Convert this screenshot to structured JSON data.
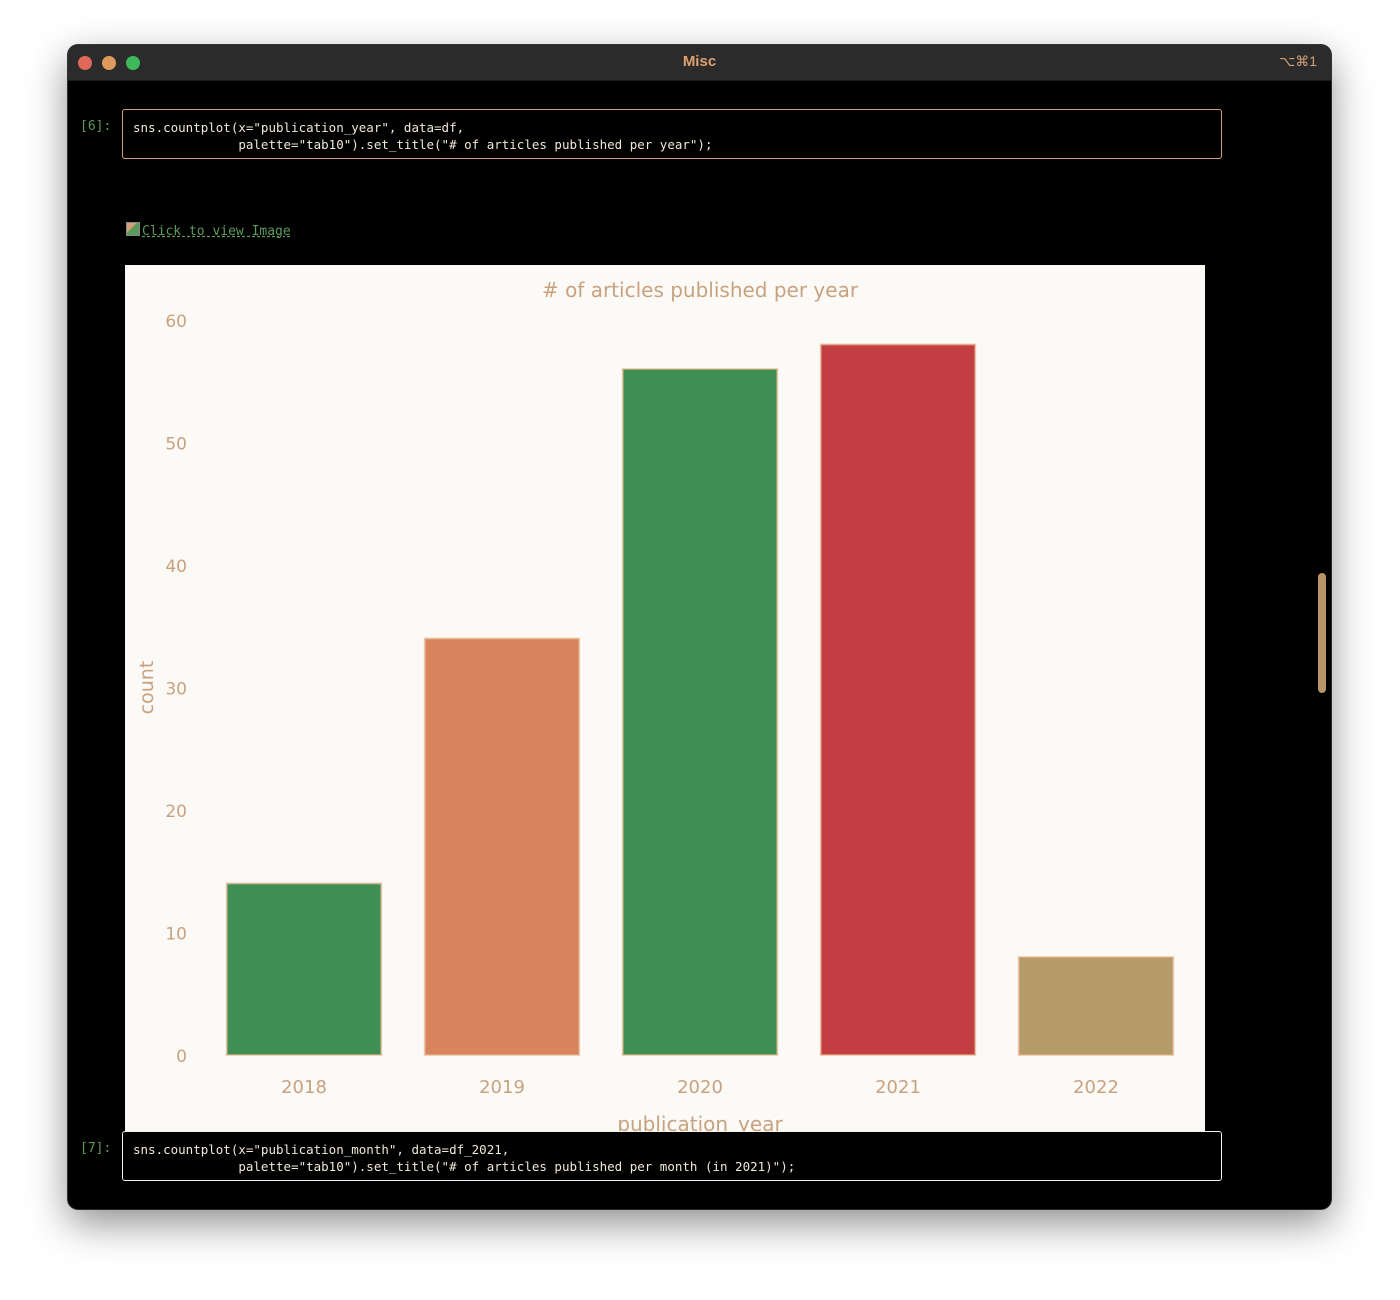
{
  "window": {
    "title": "Misc",
    "shortcut": "⌥⌘1"
  },
  "cells": [
    {
      "prompt": "[6]:",
      "code": "sns.countplot(x=\"publication_year\", data=df,\n              palette=\"tab10\").set_title(\"# of articles published per year\");"
    },
    {
      "prompt": "[7]:",
      "code": "sns.countplot(x=\"publication_month\", data=df_2021,\n              palette=\"tab10\").set_title(\"# of articles published per month (in 2021)\");"
    }
  ],
  "output": {
    "image_link_label": "Click to view Image"
  },
  "chart_data": {
    "type": "bar",
    "title": "# of articles published per year",
    "xlabel": "publication_year",
    "ylabel": "count",
    "categories": [
      "2018",
      "2019",
      "2020",
      "2021",
      "2022"
    ],
    "values": [
      14,
      34,
      56,
      58,
      8
    ],
    "ylim": [
      0,
      60
    ],
    "yticks": [
      0,
      10,
      20,
      30,
      40,
      50,
      60
    ],
    "colors": [
      "#3f8f55",
      "#d8855e",
      "#3f8f55",
      "#c23e42",
      "#b59a6a"
    ]
  }
}
